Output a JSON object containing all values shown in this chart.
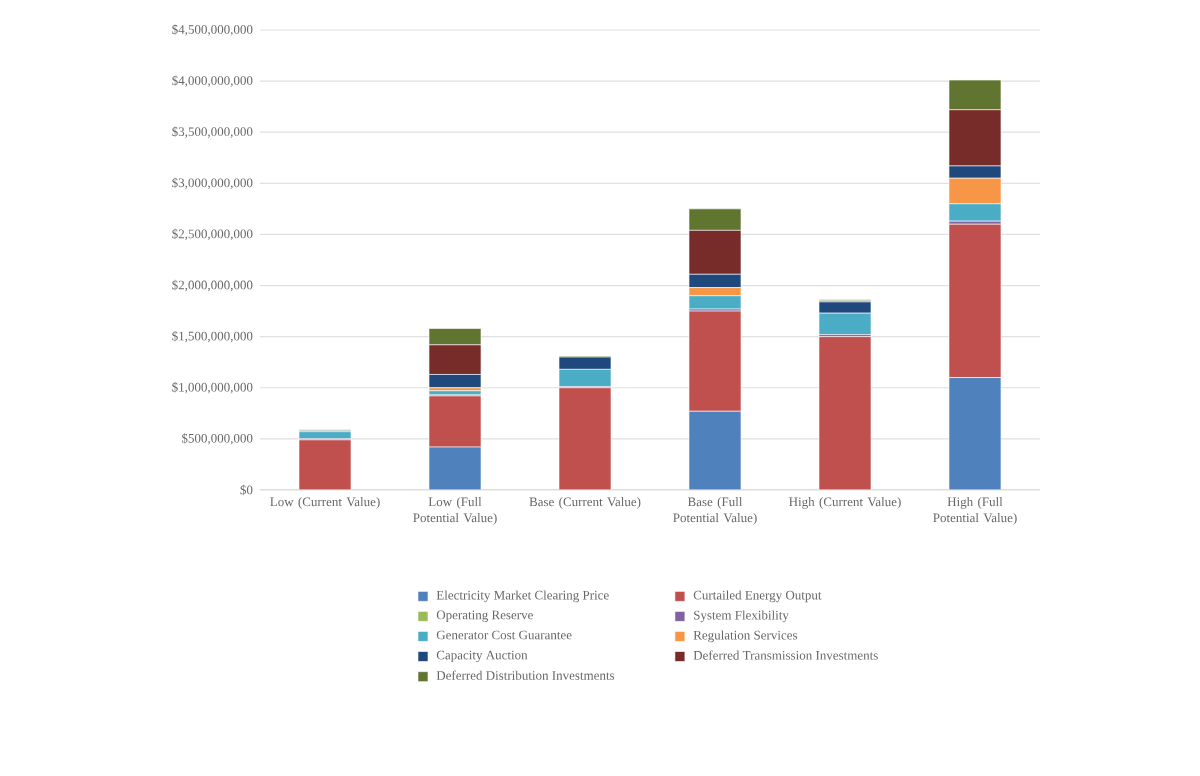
{
  "chart_data": {
    "type": "bar",
    "stacked": true,
    "grid": "y",
    "legend": "bottom",
    "categories": [
      "Low (Current Value)",
      "Low (Full Potential Value)",
      "Base (Current Value)",
      "Base (Full Potential Value)",
      "High (Current Value)",
      "High (Full Potential Value)"
    ],
    "ylim": [
      0,
      4500000000
    ],
    "yticks": [
      {
        "value": 0,
        "label": "$0"
      },
      {
        "value": 500000000,
        "label": "$500,000,000"
      },
      {
        "value": 1000000000,
        "label": "$1,000,000,000"
      },
      {
        "value": 1500000000,
        "label": "$1,500,000,000"
      },
      {
        "value": 2000000000,
        "label": "$2,000,000,000"
      },
      {
        "value": 2500000000,
        "label": "$2,500,000,000"
      },
      {
        "value": 3000000000,
        "label": "$3,000,000,000"
      },
      {
        "value": 3500000000,
        "label": "$3,500,000,000"
      },
      {
        "value": 4000000000,
        "label": "$4,000,000,000"
      },
      {
        "value": 4500000000,
        "label": "$4,500,000,000"
      }
    ],
    "series": [
      {
        "name": "Electricity Market Clearing Price",
        "color": "#4f81bd",
        "values": [
          0,
          420000000,
          0,
          770000000,
          0,
          1100000000
        ]
      },
      {
        "name": "Curtailed Energy Output",
        "color": "#c0504d",
        "values": [
          490000000,
          500000000,
          1000000000,
          980000000,
          1500000000,
          1500000000
        ]
      },
      {
        "name": "Operating Reserve",
        "color": "#9bbb59",
        "values": [
          0,
          0,
          0,
          0,
          0,
          0
        ]
      },
      {
        "name": "System Flexibility",
        "color": "#8064a2",
        "values": [
          10000000,
          10000000,
          10000000,
          20000000,
          20000000,
          30000000
        ]
      },
      {
        "name": "Generator Cost Guarantee",
        "color": "#4bacc6",
        "values": [
          70000000,
          40000000,
          170000000,
          130000000,
          210000000,
          170000000
        ]
      },
      {
        "name": "Regulation Services",
        "color": "#f79646",
        "values": [
          0,
          30000000,
          0,
          80000000,
          0,
          250000000
        ]
      },
      {
        "name": "Capacity Auction",
        "color": "#1f497d",
        "values": [
          10000000,
          130000000,
          120000000,
          130000000,
          110000000,
          120000000
        ]
      },
      {
        "name": "Deferred Transmission Investments",
        "color": "#772c2a",
        "values": [
          0,
          290000000,
          null,
          430000000,
          10000000,
          550000000
        ]
      },
      {
        "name": "Deferred Distribution Investments",
        "color": "#5f7530",
        "values": [
          10000000,
          160000000,
          10000000,
          210000000,
          10000000,
          290000000
        ]
      }
    ]
  }
}
